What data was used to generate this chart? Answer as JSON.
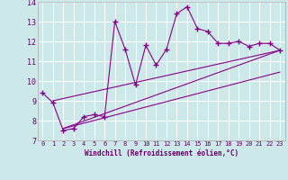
{
  "xlabel": "Windchill (Refroidissement éolien,°C)",
  "bg_color": "#cce8e8",
  "grid_color": "#ffffff",
  "line_color": "#880088",
  "label_color": "#660066",
  "xlim": [
    -0.5,
    23.5
  ],
  "ylim": [
    7,
    14
  ],
  "xticks": [
    0,
    1,
    2,
    3,
    4,
    5,
    6,
    7,
    8,
    9,
    10,
    11,
    12,
    13,
    14,
    15,
    16,
    17,
    18,
    19,
    20,
    21,
    22,
    23
  ],
  "yticks": [
    7,
    8,
    9,
    10,
    11,
    12,
    13,
    14
  ],
  "main_x": [
    0,
    1,
    2,
    3,
    4,
    5,
    6,
    7,
    8,
    9,
    10,
    11,
    12,
    13,
    14,
    15,
    16,
    17,
    18,
    19,
    20,
    21,
    22,
    23
  ],
  "main_y": [
    9.4,
    8.9,
    7.5,
    7.6,
    8.2,
    8.3,
    8.2,
    13.0,
    11.6,
    9.8,
    11.8,
    10.8,
    11.6,
    13.4,
    13.75,
    12.65,
    12.5,
    11.9,
    11.9,
    12.0,
    11.75,
    11.9,
    11.9,
    11.55
  ],
  "reg_line1_x": [
    1,
    23
  ],
  "reg_line1_y": [
    9.0,
    11.55
  ],
  "reg_line2_x": [
    2,
    23
  ],
  "reg_line2_y": [
    7.6,
    10.45
  ],
  "reg_line3_x": [
    2,
    23
  ],
  "reg_line3_y": [
    7.6,
    11.55
  ]
}
